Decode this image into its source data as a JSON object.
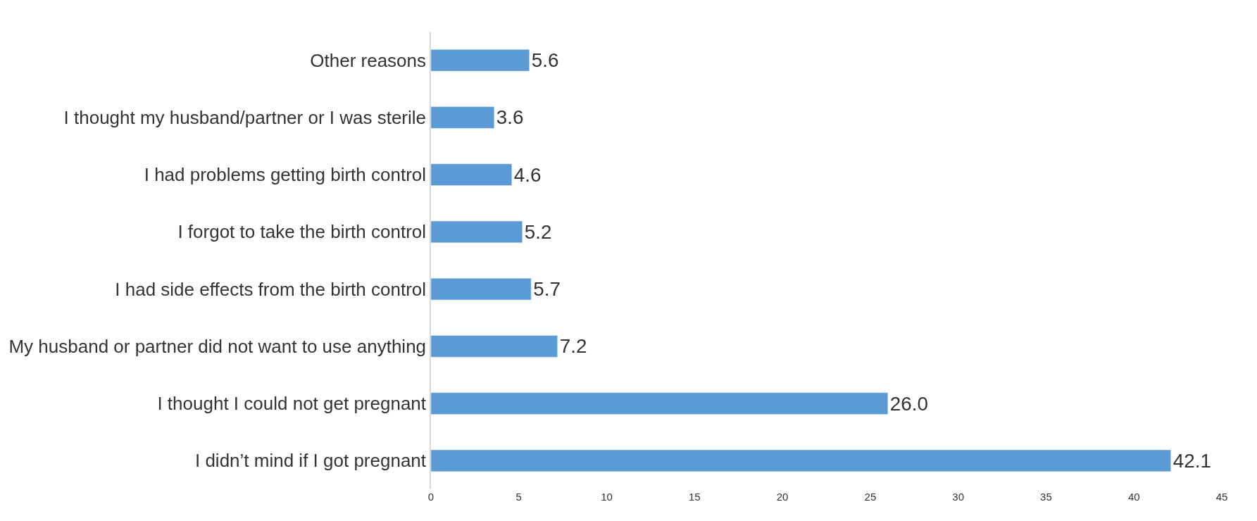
{
  "chart_data": {
    "type": "bar",
    "orientation": "horizontal",
    "categories": [
      "Other reasons",
      "I thought my husband/partner or I was sterile",
      "I had problems getting birth control",
      "I forgot to take the birth control",
      "I had side effects from the birth control",
      "My husband or partner did not want to use anything",
      "I thought I could not get pregnant",
      "I didn’t mind if I got pregnant"
    ],
    "values": [
      5.6,
      3.6,
      4.6,
      5.2,
      5.7,
      7.2,
      26.0,
      42.1
    ],
    "value_labels": [
      "5.6",
      "3.6",
      "4.6",
      "5.2",
      "5.7",
      "7.2",
      "26.0",
      "42.1"
    ],
    "color": "#5b9bd5",
    "xlim": [
      0,
      45
    ],
    "xticks": [
      0,
      5,
      10,
      15,
      20,
      25,
      30,
      35,
      40,
      45
    ]
  }
}
